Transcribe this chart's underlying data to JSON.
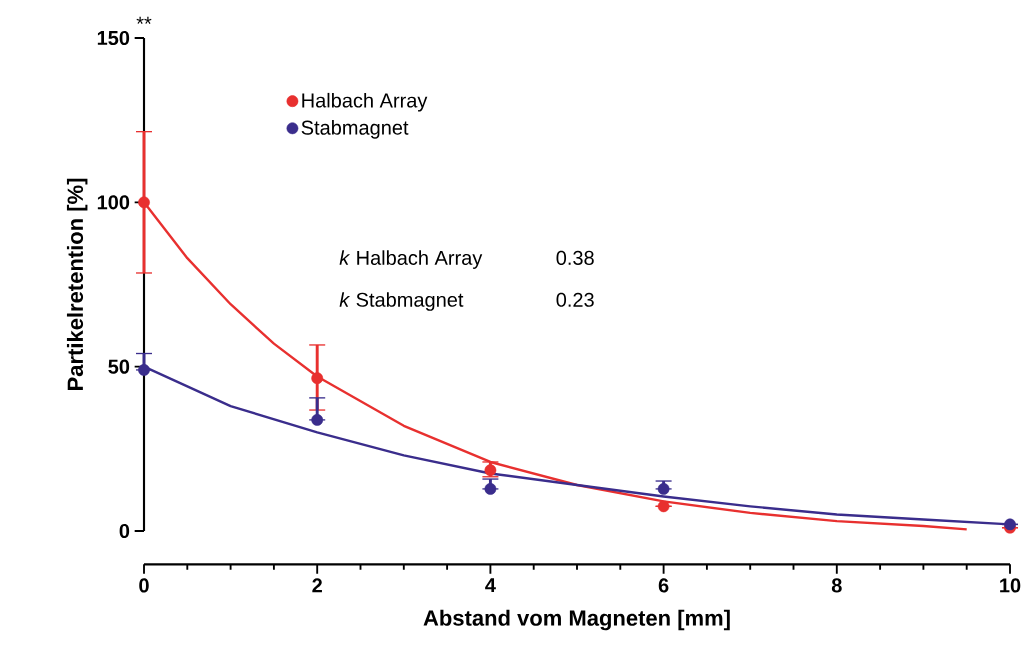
{
  "chart_data": {
    "type": "scatter",
    "xlabel": "Abstand vom Magneten [mm]",
    "ylabel": "Partikelretention [%]",
    "xlim": [
      0,
      10
    ],
    "ylim": [
      0,
      150
    ],
    "xticks": [
      0,
      2,
      4,
      6,
      8,
      10
    ],
    "yticks": [
      0,
      50,
      100,
      150
    ],
    "grid": false,
    "legend": "top left",
    "annotations": [
      "**",
      "*k* Halbach Array",
      "0.38",
      "*k* Stabmagnet",
      "0.23"
    ],
    "series": [
      {
        "name": "Halbach Array",
        "marker": "circle",
        "color": "#e8302f",
        "x": [
          0,
          2,
          4,
          6,
          10
        ],
        "values": [
          100,
          46.5,
          18.5,
          7.5,
          1
        ],
        "errors": [
          [
            78.5,
            121.5
          ],
          [
            36.8,
            56.6
          ],
          [
            16.5,
            21
          ],
          null,
          null
        ]
      },
      {
        "name": "Stabmagnet",
        "marker": "circle",
        "color": "#3a2d8c",
        "x": [
          0,
          2,
          4,
          6,
          10
        ],
        "values": [
          49,
          33.8,
          12.8,
          12.8,
          2
        ],
        "errors": [
          [
            49,
            54
          ],
          [
            33.8,
            40.5
          ],
          [
            12.8,
            15.8
          ],
          [
            12.8,
            15.2
          ],
          null
        ]
      },
      {
        "type": "line",
        "marker": "none",
        "color": "#e8302f",
        "x": [
          0,
          0.5,
          1,
          1.5,
          2,
          3,
          4,
          5,
          6,
          7,
          8,
          9,
          9.5
        ],
        "values": [
          100,
          83,
          69,
          57,
          47,
          32,
          21,
          14,
          9,
          5.5,
          3,
          1.5,
          0.5
        ]
      },
      {
        "type": "line",
        "marker": "none",
        "color": "#3a2d8c",
        "x": [
          0,
          1,
          2,
          3,
          4,
          5,
          6,
          7,
          8,
          9,
          10
        ],
        "values": [
          50,
          38,
          30,
          23,
          17.5,
          14,
          10.5,
          7.5,
          5,
          3.5,
          2
        ]
      }
    ]
  }
}
